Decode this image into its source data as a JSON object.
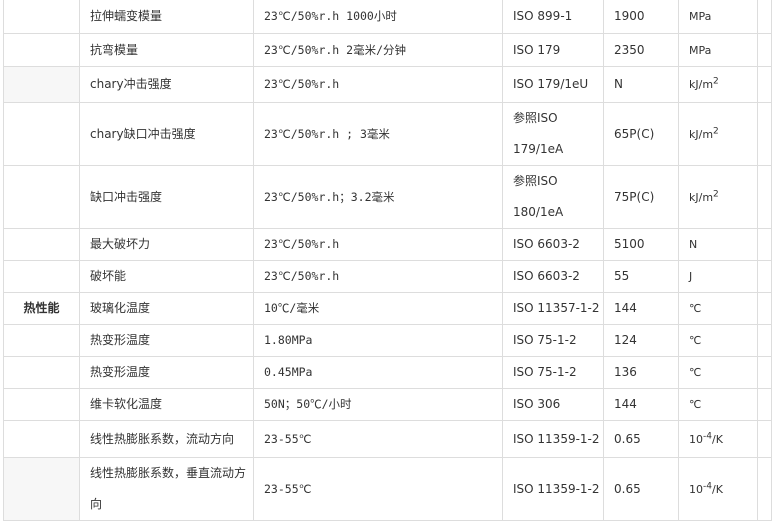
{
  "section_label": "热性能",
  "rows": [
    {
      "property": "拉伸蠕变模量",
      "condition": "23℃/50%r.h 1000小时",
      "standard": "ISO 899-1",
      "value": "1900",
      "unit": "MPa",
      "unit_sup": ""
    },
    {
      "property": "抗弯模量",
      "condition": "23℃/50%r.h 2毫米/分钟",
      "standard": "ISO 179",
      "value": "2350",
      "unit": "MPa",
      "unit_sup": ""
    },
    {
      "property": "chary冲击强度",
      "condition": "23℃/50%r.h",
      "standard": "ISO 179/1eU",
      "value": "N",
      "unit": "kJ/m",
      "unit_sup": "2"
    },
    {
      "property": "chary缺口冲击强度",
      "condition": "23℃/50%r.h ; 3毫米",
      "standard": "参照ISO 179/1eA",
      "value": "65P(C)",
      "unit": "kJ/m",
      "unit_sup": "2"
    },
    {
      "property": "缺口冲击强度",
      "condition": "23℃/50%r.h；3.2毫米",
      "standard": "参照ISO 180/1eA",
      "value": "75P(C)",
      "unit": "kJ/m",
      "unit_sup": "2"
    },
    {
      "property": "最大破坏力",
      "condition": "23℃/50%r.h",
      "standard": "ISO 6603-2",
      "value": "5100",
      "unit": "N",
      "unit_sup": ""
    },
    {
      "property": "破坏能",
      "condition": "23℃/50%r.h",
      "standard": "ISO 6603-2",
      "value": "55",
      "unit": "J",
      "unit_sup": ""
    },
    {
      "property": "玻璃化温度",
      "condition": "10℃/毫米",
      "standard": "ISO 11357-1-2",
      "value": "144",
      "unit": "℃",
      "unit_sup": ""
    },
    {
      "property": "热变形温度",
      "condition": "1.80MPa",
      "standard": "ISO 75-1-2",
      "value": "124",
      "unit": "℃",
      "unit_sup": ""
    },
    {
      "property": "热变形温度",
      "condition": "0.45MPa",
      "standard": "ISO 75-1-2",
      "value": "136",
      "unit": "℃",
      "unit_sup": ""
    },
    {
      "property": "维卡软化温度",
      "condition": "50N；50℃/小时",
      "standard": "ISO 306",
      "value": "144",
      "unit": "℃",
      "unit_sup": ""
    },
    {
      "property": "线性热膨胀系数，流动方向",
      "condition": "23-55℃",
      "standard": "ISO 11359-1-2",
      "value": "0.65",
      "unit": "10",
      "unit_sup": "-4",
      "unit_suffix": "/K"
    },
    {
      "property": "线性热膨胀系数，垂直流动方向",
      "condition": "23-55℃",
      "standard": "ISO 11359-1-2",
      "value": "0.65",
      "unit": "10",
      "unit_sup": "-4",
      "unit_suffix": "/K"
    }
  ]
}
